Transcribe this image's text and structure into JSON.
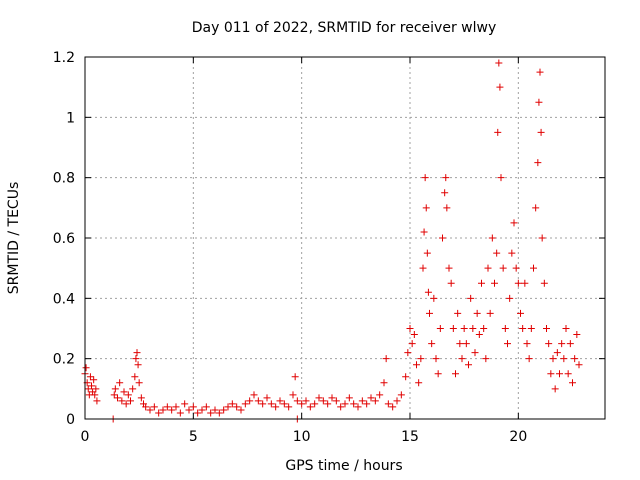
{
  "chart_data": {
    "type": "scatter",
    "title": "Day 011 of 2022, SRMTID for receiver wlwy",
    "xlabel": "GPS time / hours",
    "ylabel": "SRMTID / TECUs",
    "xlim": [
      0,
      24
    ],
    "ylim": [
      0,
      1.2
    ],
    "x_ticks": [
      0,
      5,
      10,
      15,
      20
    ],
    "x_tick_labels": [
      "0",
      "5",
      "10",
      "15",
      "20"
    ],
    "y_ticks": [
      0,
      0.2,
      0.4,
      0.6,
      0.8,
      1.0,
      1.2
    ],
    "y_tick_labels": [
      "0",
      "0.2",
      "0.4",
      "0.6",
      "0.8",
      "1",
      "1.2"
    ],
    "grid": true,
    "marker": "plus",
    "color": "#e00000",
    "series": [
      {
        "name": "SRMTID",
        "points": [
          [
            0.0,
            0.15
          ],
          [
            0.05,
            0.17
          ],
          [
            0.1,
            0.12
          ],
          [
            0.15,
            0.1
          ],
          [
            0.2,
            0.08
          ],
          [
            0.25,
            0.14
          ],
          [
            0.3,
            0.11
          ],
          [
            0.35,
            0.09
          ],
          [
            0.4,
            0.13
          ],
          [
            0.45,
            0.08
          ],
          [
            0.5,
            0.1
          ],
          [
            0.55,
            0.06
          ],
          [
            1.3,
            0.0
          ],
          [
            1.35,
            0.08
          ],
          [
            1.4,
            0.1
          ],
          [
            1.5,
            0.07
          ],
          [
            1.6,
            0.12
          ],
          [
            1.7,
            0.06
          ],
          [
            1.8,
            0.09
          ],
          [
            1.9,
            0.05
          ],
          [
            2.0,
            0.08
          ],
          [
            2.1,
            0.06
          ],
          [
            2.2,
            0.1
          ],
          [
            2.3,
            0.14
          ],
          [
            2.35,
            0.2
          ],
          [
            2.4,
            0.22
          ],
          [
            2.45,
            0.18
          ],
          [
            2.5,
            0.12
          ],
          [
            2.6,
            0.07
          ],
          [
            2.7,
            0.05
          ],
          [
            2.8,
            0.04
          ],
          [
            3.0,
            0.03
          ],
          [
            3.2,
            0.04
          ],
          [
            3.4,
            0.02
          ],
          [
            3.6,
            0.03
          ],
          [
            3.8,
            0.04
          ],
          [
            4.0,
            0.03
          ],
          [
            4.2,
            0.04
          ],
          [
            4.4,
            0.02
          ],
          [
            4.6,
            0.05
          ],
          [
            4.8,
            0.03
          ],
          [
            5.0,
            0.04
          ],
          [
            5.2,
            0.02
          ],
          [
            5.4,
            0.03
          ],
          [
            5.6,
            0.04
          ],
          [
            5.8,
            0.02
          ],
          [
            6.0,
            0.03
          ],
          [
            6.2,
            0.02
          ],
          [
            6.4,
            0.03
          ],
          [
            6.6,
            0.04
          ],
          [
            6.8,
            0.05
          ],
          [
            7.0,
            0.04
          ],
          [
            7.2,
            0.03
          ],
          [
            7.4,
            0.05
          ],
          [
            7.6,
            0.06
          ],
          [
            7.8,
            0.08
          ],
          [
            8.0,
            0.06
          ],
          [
            8.2,
            0.05
          ],
          [
            8.4,
            0.07
          ],
          [
            8.6,
            0.05
          ],
          [
            8.8,
            0.04
          ],
          [
            9.0,
            0.06
          ],
          [
            9.2,
            0.05
          ],
          [
            9.4,
            0.04
          ],
          [
            9.6,
            0.08
          ],
          [
            9.7,
            0.14
          ],
          [
            9.8,
            0.06
          ],
          [
            9.8,
            0.0
          ],
          [
            10.0,
            0.05
          ],
          [
            10.2,
            0.06
          ],
          [
            10.4,
            0.04
          ],
          [
            10.6,
            0.05
          ],
          [
            10.8,
            0.07
          ],
          [
            11.0,
            0.06
          ],
          [
            11.2,
            0.05
          ],
          [
            11.4,
            0.07
          ],
          [
            11.6,
            0.06
          ],
          [
            11.8,
            0.04
          ],
          [
            12.0,
            0.05
          ],
          [
            12.2,
            0.07
          ],
          [
            12.4,
            0.05
          ],
          [
            12.6,
            0.04
          ],
          [
            12.8,
            0.06
          ],
          [
            13.0,
            0.05
          ],
          [
            13.2,
            0.07
          ],
          [
            13.4,
            0.06
          ],
          [
            13.6,
            0.08
          ],
          [
            13.8,
            0.12
          ],
          [
            13.9,
            0.2
          ],
          [
            14.0,
            0.05
          ],
          [
            14.2,
            0.04
          ],
          [
            14.4,
            0.06
          ],
          [
            14.6,
            0.08
          ],
          [
            14.8,
            0.14
          ],
          [
            14.9,
            0.22
          ],
          [
            15.0,
            0.3
          ],
          [
            15.1,
            0.25
          ],
          [
            15.2,
            0.28
          ],
          [
            15.3,
            0.18
          ],
          [
            15.4,
            0.12
          ],
          [
            15.5,
            0.2
          ],
          [
            15.6,
            0.5
          ],
          [
            15.65,
            0.62
          ],
          [
            15.7,
            0.8
          ],
          [
            15.75,
            0.7
          ],
          [
            15.8,
            0.55
          ],
          [
            15.85,
            0.42
          ],
          [
            15.9,
            0.35
          ],
          [
            16.0,
            0.25
          ],
          [
            16.1,
            0.4
          ],
          [
            16.2,
            0.2
          ],
          [
            16.3,
            0.15
          ],
          [
            16.4,
            0.3
          ],
          [
            16.5,
            0.6
          ],
          [
            16.6,
            0.75
          ],
          [
            16.65,
            0.8
          ],
          [
            16.7,
            0.7
          ],
          [
            16.8,
            0.5
          ],
          [
            16.9,
            0.45
          ],
          [
            17.0,
            0.3
          ],
          [
            17.1,
            0.15
          ],
          [
            17.2,
            0.35
          ],
          [
            17.3,
            0.25
          ],
          [
            17.4,
            0.2
          ],
          [
            17.5,
            0.3
          ],
          [
            17.6,
            0.25
          ],
          [
            17.7,
            0.18
          ],
          [
            17.8,
            0.4
          ],
          [
            17.9,
            0.3
          ],
          [
            18.0,
            0.22
          ],
          [
            18.1,
            0.35
          ],
          [
            18.2,
            0.28
          ],
          [
            18.3,
            0.45
          ],
          [
            18.4,
            0.3
          ],
          [
            18.5,
            0.2
          ],
          [
            18.6,
            0.5
          ],
          [
            18.7,
            0.35
          ],
          [
            18.8,
            0.6
          ],
          [
            18.9,
            0.45
          ],
          [
            19.0,
            0.55
          ],
          [
            19.05,
            0.95
          ],
          [
            19.1,
            1.18
          ],
          [
            19.15,
            1.1
          ],
          [
            19.2,
            0.8
          ],
          [
            19.3,
            0.5
          ],
          [
            19.4,
            0.3
          ],
          [
            19.5,
            0.25
          ],
          [
            19.6,
            0.4
          ],
          [
            19.7,
            0.55
          ],
          [
            19.8,
            0.65
          ],
          [
            19.9,
            0.5
          ],
          [
            20.0,
            0.45
          ],
          [
            20.1,
            0.35
          ],
          [
            20.2,
            0.3
          ],
          [
            20.3,
            0.45
          ],
          [
            20.4,
            0.25
          ],
          [
            20.5,
            0.2
          ],
          [
            20.6,
            0.3
          ],
          [
            20.7,
            0.5
          ],
          [
            20.8,
            0.7
          ],
          [
            20.9,
            0.85
          ],
          [
            20.95,
            1.05
          ],
          [
            21.0,
            1.15
          ],
          [
            21.05,
            0.95
          ],
          [
            21.1,
            0.6
          ],
          [
            21.2,
            0.45
          ],
          [
            21.3,
            0.3
          ],
          [
            21.4,
            0.25
          ],
          [
            21.5,
            0.15
          ],
          [
            21.6,
            0.2
          ],
          [
            21.7,
            0.1
          ],
          [
            21.8,
            0.22
          ],
          [
            21.9,
            0.15
          ],
          [
            22.0,
            0.25
          ],
          [
            22.1,
            0.2
          ],
          [
            22.2,
            0.3
          ],
          [
            22.3,
            0.15
          ],
          [
            22.4,
            0.25
          ],
          [
            22.5,
            0.12
          ],
          [
            22.6,
            0.2
          ],
          [
            22.7,
            0.28
          ],
          [
            22.8,
            0.18
          ]
        ]
      }
    ]
  }
}
